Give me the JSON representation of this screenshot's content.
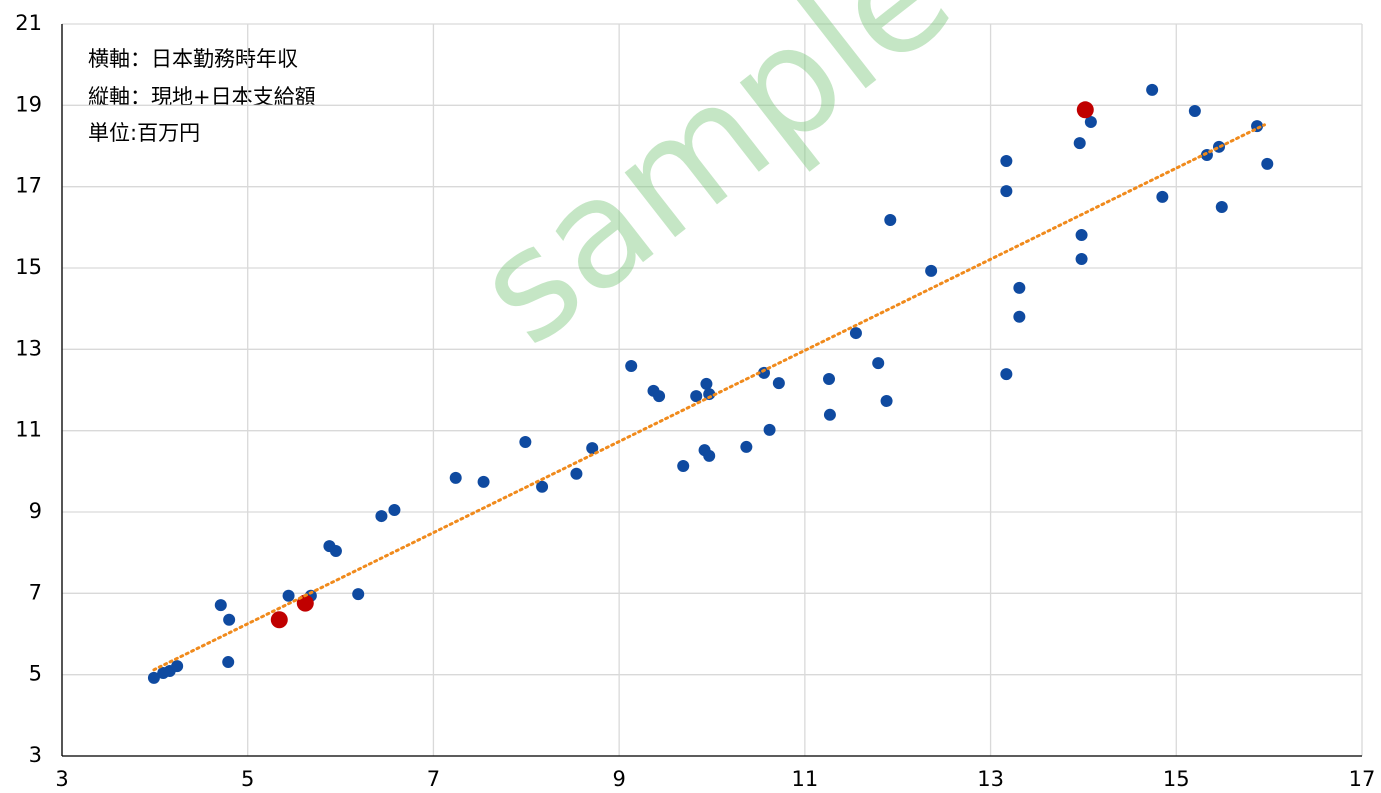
{
  "chart_data": {
    "type": "scatter",
    "annotations": [
      "横軸：日本勤務時年収",
      "縦軸：現地+日本支給額",
      "単位:百万円"
    ],
    "watermark": "sample",
    "xlim": [
      3,
      17
    ],
    "xticks": [
      3,
      5,
      7,
      9,
      11,
      13,
      15,
      17
    ],
    "ylim": [
      3,
      21
    ],
    "yticks": [
      3,
      5,
      7,
      9,
      11,
      13,
      15,
      17,
      19,
      21
    ],
    "grid": true,
    "series": [
      {
        "color": "#0f4aa0",
        "x": [
          3.99,
          4.09,
          4.16,
          4.24,
          4.71,
          4.8,
          4.79,
          5.44,
          5.68,
          5.88,
          5.95,
          6.19,
          6.44,
          6.58,
          7.24,
          7.54,
          7.99,
          8.17,
          8.54,
          8.71,
          9.13,
          9.37,
          9.43,
          9.69,
          9.83,
          9.94,
          9.97,
          9.92,
          9.97,
          10.37,
          10.56,
          10.62,
          10.72,
          11.26,
          11.27,
          11.55,
          11.79,
          11.88,
          11.92,
          12.36,
          13.17,
          13.17,
          13.17,
          13.31,
          13.31,
          13.96,
          13.98,
          13.98,
          14.08,
          14.74,
          14.85,
          15.2,
          15.33,
          15.46,
          15.49,
          15.87,
          15.98
        ],
        "values": [
          4.92,
          5.04,
          5.09,
          5.21,
          6.71,
          6.35,
          5.31,
          6.94,
          6.94,
          8.16,
          8.04,
          6.98,
          8.9,
          9.05,
          9.84,
          9.74,
          10.72,
          9.62,
          9.94,
          10.57,
          12.59,
          11.98,
          11.85,
          10.13,
          11.85,
          12.15,
          11.9,
          10.52,
          10.38,
          10.6,
          12.42,
          11.02,
          12.17,
          12.27,
          11.39,
          13.4,
          12.66,
          11.73,
          16.18,
          14.93,
          17.63,
          16.89,
          12.39,
          14.51,
          13.8,
          18.07,
          15.81,
          15.22,
          18.59,
          19.38,
          16.75,
          18.86,
          17.78,
          17.98,
          16.5,
          18.49,
          17.56
        ]
      },
      {
        "color": "#c00000",
        "x": [
          5.34,
          5.62,
          14.02
        ],
        "values": [
          6.35,
          6.76,
          18.89
        ]
      }
    ],
    "trendline": {
      "color": "#f08a1c",
      "x": [
        3.99,
        15.95
      ],
      "values": [
        5.12,
        18.52
      ]
    }
  }
}
